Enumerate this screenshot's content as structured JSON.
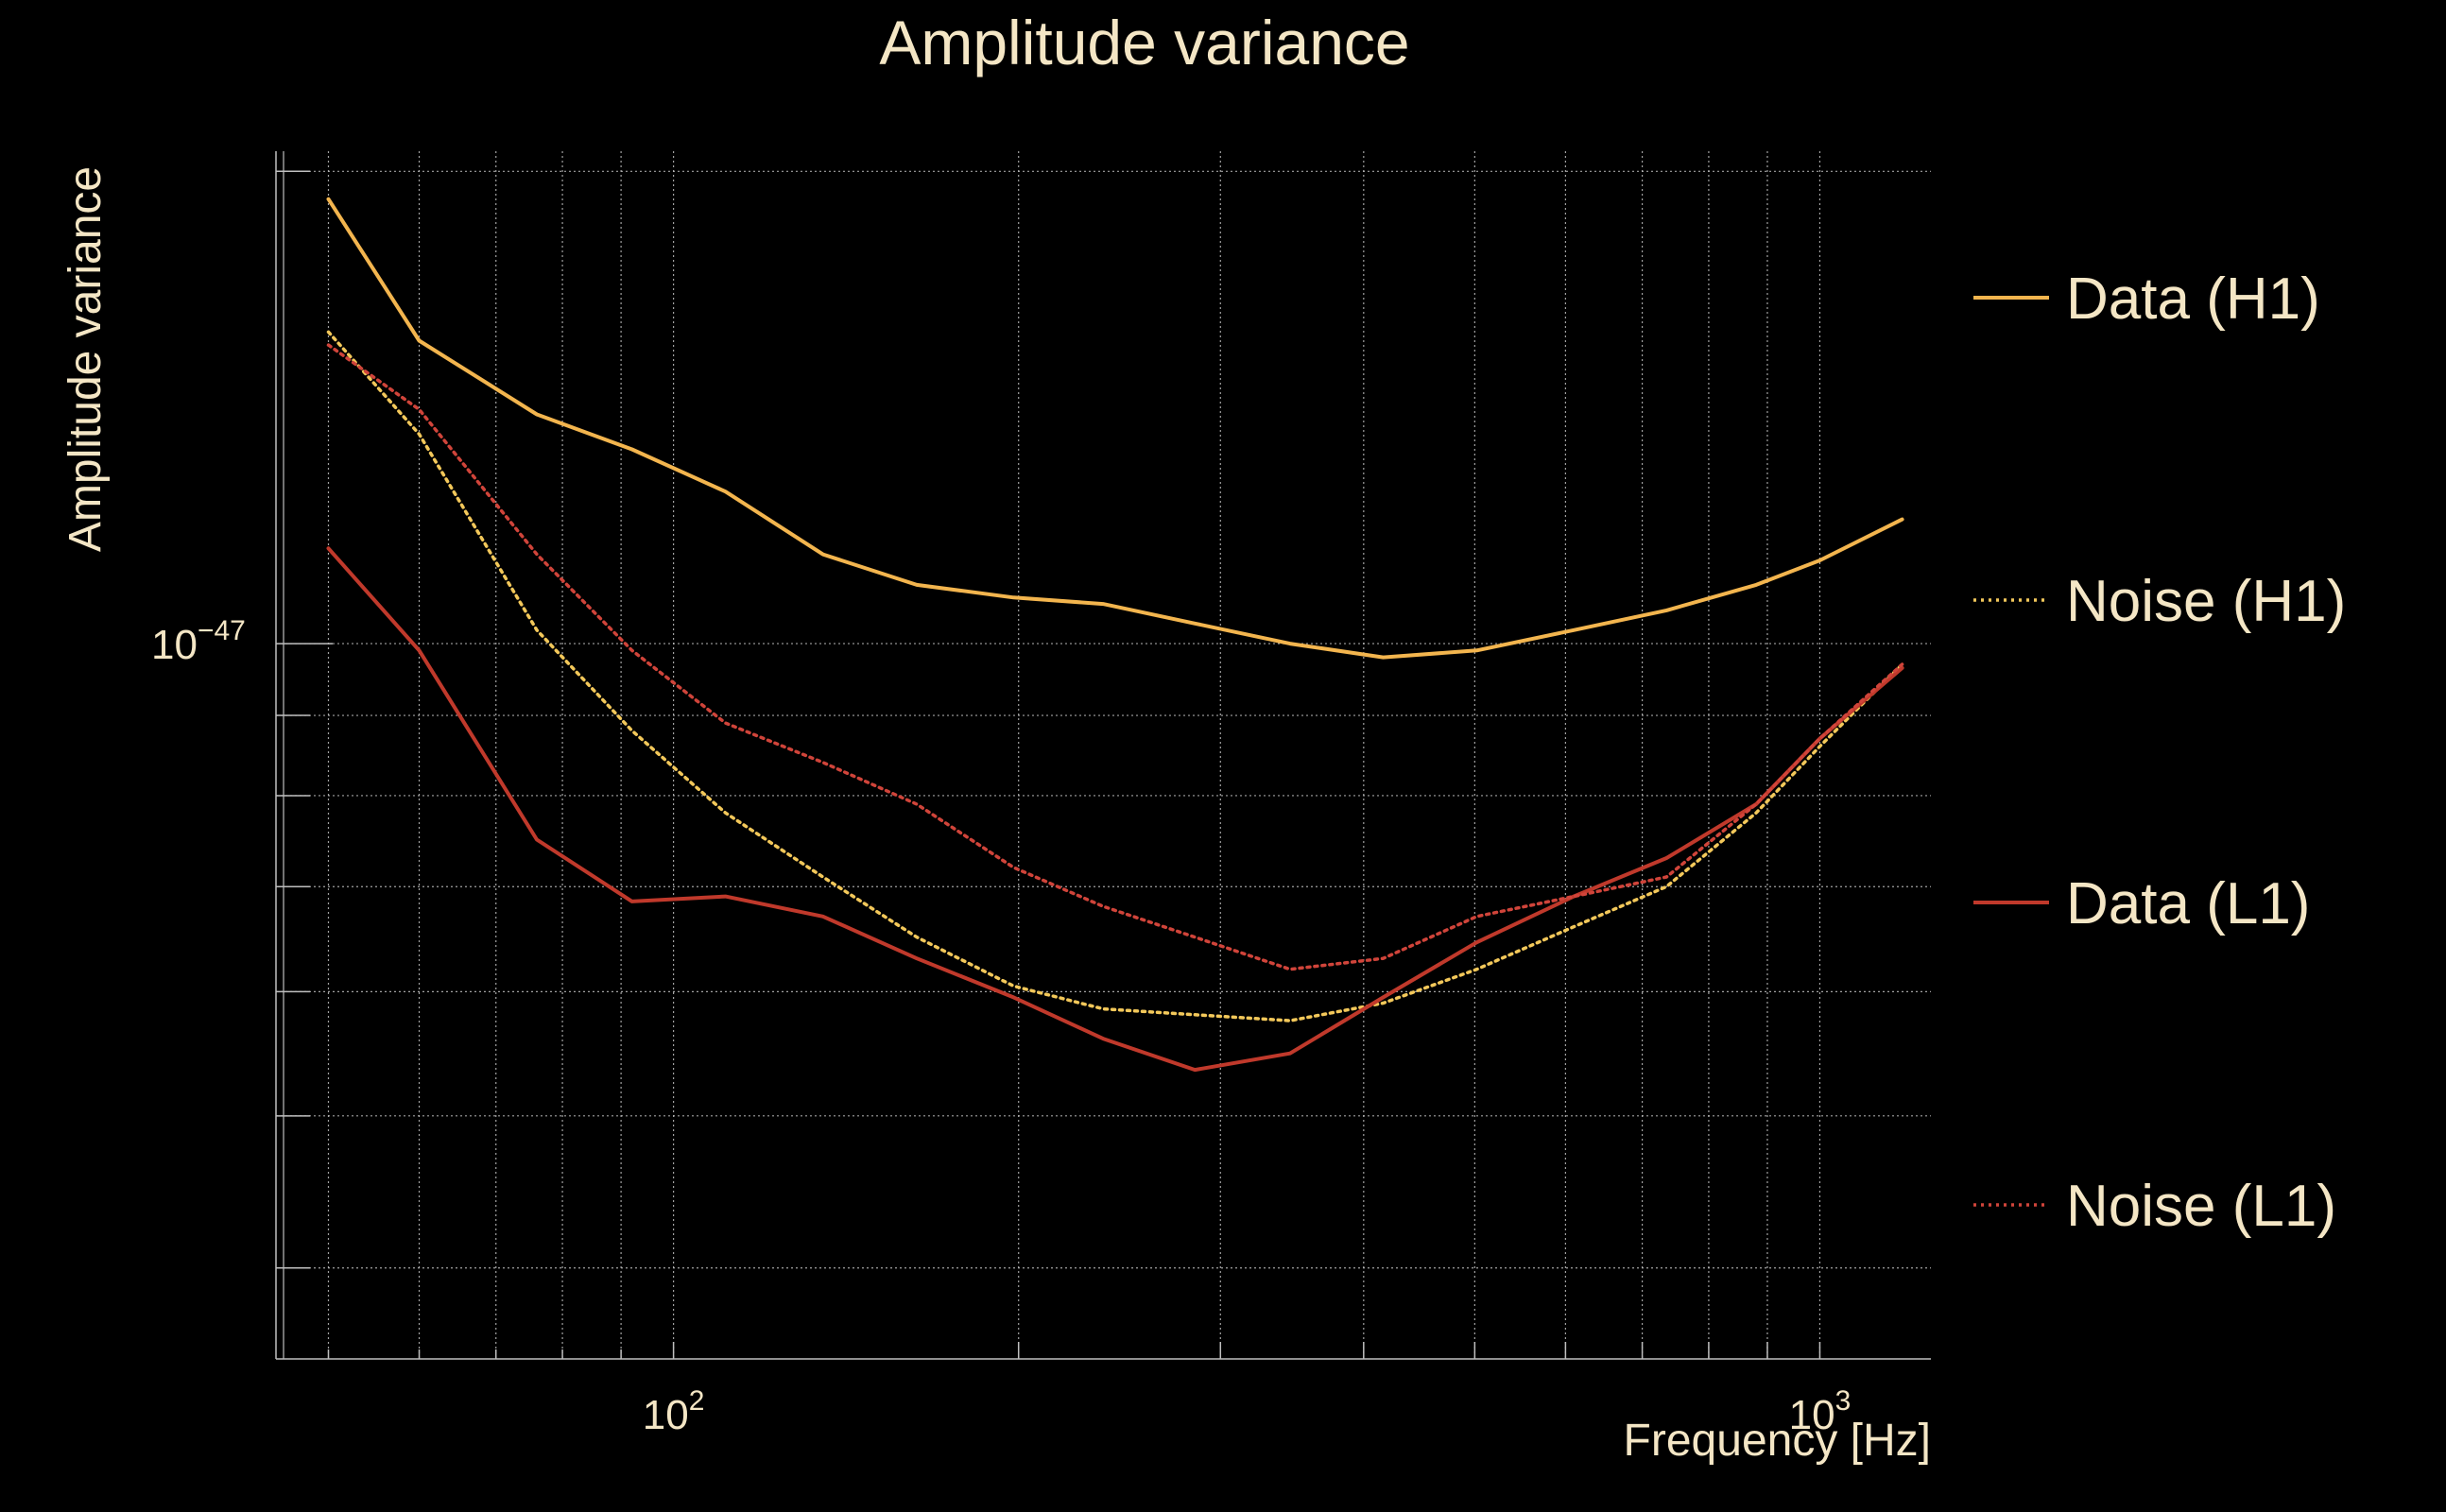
{
  "chart_data": {
    "type": "line",
    "title": "Amplitude variance",
    "xlabel": "Frequency [Hz]",
    "ylabel": "Amplitude variance",
    "xscale": "log",
    "yscale": "log",
    "xlim": [
      45,
      1250
    ],
    "ylim": [
      3.5e-48,
      2.06e-47
    ],
    "grid": true,
    "legend_position": "right",
    "x_ticks": [
      {
        "value": 100,
        "base": "10",
        "exp": "2"
      },
      {
        "value": 1000,
        "base": "10",
        "exp": "3"
      }
    ],
    "y_ticks": [
      {
        "value": 1e-47,
        "base": "10",
        "exp": "−47"
      }
    ],
    "x": [
      50,
      60,
      76,
      92,
      111,
      135,
      163,
      198,
      237,
      285,
      345,
      416,
      502,
      610,
      735,
      880,
      1000,
      1180
    ],
    "series": [
      {
        "name": "Data (H1)",
        "color": "#f3b54e",
        "dash": "solid",
        "values": [
          1.92e-47,
          1.56e-47,
          1.4e-47,
          1.33e-47,
          1.25e-47,
          1.14e-47,
          1.09e-47,
          1.07e-47,
          1.06e-47,
          1.03e-47,
          1e-47,
          9.8e-48,
          9.9e-48,
          1.02e-47,
          1.05e-47,
          1.09e-47,
          1.13e-47,
          1.2e-47
        ]
      },
      {
        "name": "Noise (H1)",
        "color": "#f3c85a",
        "dash": "dotted",
        "values": [
          1.58e-47,
          1.36e-47,
          1.02e-47,
          8.8e-48,
          7.8e-48,
          7.1e-48,
          6.5e-48,
          6.05e-48,
          5.85e-48,
          5.8e-48,
          5.75e-48,
          5.9e-48,
          6.2e-48,
          6.6e-48,
          7e-48,
          7.8e-48,
          8.6e-48,
          9.7e-48
        ]
      },
      {
        "name": "Data (L1)",
        "color": "#c0392b",
        "dash": "solid",
        "values": [
          1.15e-47,
          9.9e-48,
          7.5e-48,
          6.85e-48,
          6.9e-48,
          6.7e-48,
          6.3e-48,
          5.95e-48,
          5.6e-48,
          5.35e-48,
          5.48e-48,
          5.95e-48,
          6.45e-48,
          6.9e-48,
          7.3e-48,
          7.9e-48,
          8.7e-48,
          9.65e-48
        ]
      },
      {
        "name": "Noise (L1)",
        "color": "#d0443a",
        "dash": "dotted",
        "values": [
          1.55e-47,
          1.41e-47,
          1.14e-47,
          9.9e-48,
          8.9e-48,
          8.4e-48,
          7.9e-48,
          7.2e-48,
          6.8e-48,
          6.5e-48,
          6.2e-48,
          6.3e-48,
          6.7e-48,
          6.9e-48,
          7.1e-48,
          7.9e-48,
          8.7e-48,
          9.7e-48
        ]
      }
    ]
  }
}
